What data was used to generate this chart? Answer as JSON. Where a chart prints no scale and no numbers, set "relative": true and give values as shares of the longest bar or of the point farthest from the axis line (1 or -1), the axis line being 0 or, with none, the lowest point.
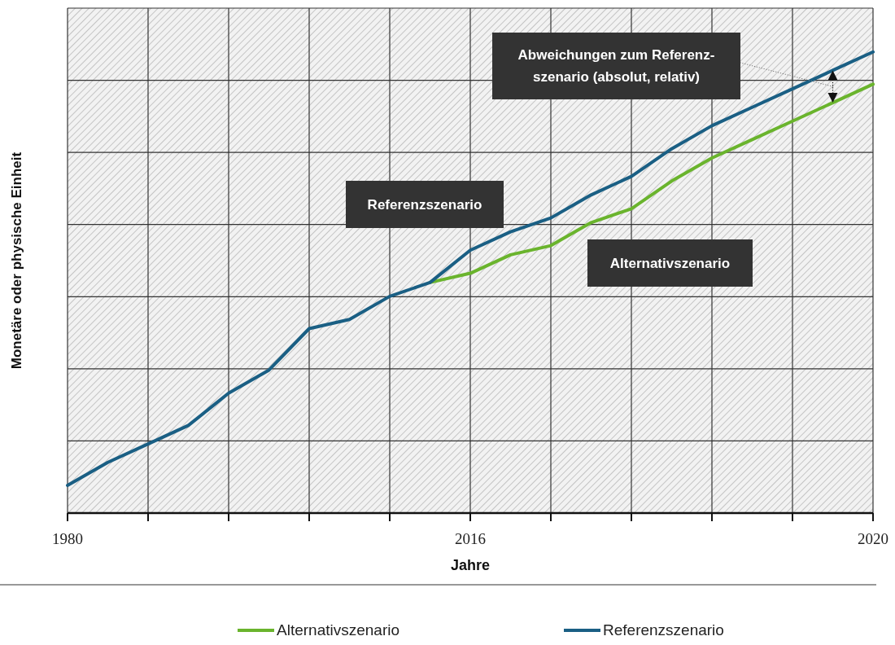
{
  "chart_data": {
    "type": "line",
    "xlabel": "Jahre",
    "ylabel": "Monetäre oder physische Einheit",
    "categories": [
      "1980",
      null,
      null,
      null,
      null,
      null,
      null,
      null,
      null,
      null,
      "2016",
      null,
      null,
      null,
      null,
      null,
      null,
      null,
      null,
      null,
      "2020"
    ],
    "relative": true,
    "series": [
      {
        "name": "Alternativszenario",
        "color": "#6ab42d",
        "values": [
          null,
          null,
          null,
          null,
          null,
          null,
          null,
          null,
          null,
          0.5,
          0.52,
          0.56,
          0.58,
          0.63,
          0.66,
          0.72,
          0.77,
          0.81,
          0.85,
          0.89,
          0.93
        ]
      },
      {
        "name": "Referenzszenario",
        "color": "#1a5f84",
        "values": [
          0.06,
          0.11,
          0.15,
          0.19,
          0.26,
          0.31,
          0.4,
          0.42,
          0.47,
          0.5,
          0.57,
          0.61,
          0.64,
          0.69,
          0.73,
          0.79,
          0.84,
          0.88,
          0.92,
          0.96,
          1.0
        ]
      }
    ],
    "annotations": [
      "Abweichungen zum Referenz-szenario (absolut, relativ)",
      "Referenzszenario",
      "Alternativszenario"
    ],
    "grid": true,
    "legend": "bottom"
  }
}
